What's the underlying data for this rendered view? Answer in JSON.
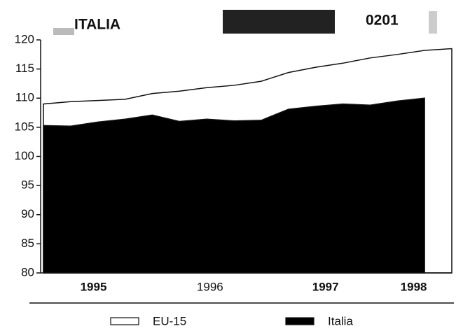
{
  "title": "ITALIA",
  "code": "0201",
  "chart_data": {
    "type": "area",
    "x": [
      1995.0,
      1995.25,
      1995.5,
      1995.75,
      1996.0,
      1996.25,
      1996.5,
      1996.75,
      1997.0,
      1997.25,
      1997.5,
      1997.75,
      1998.0,
      1998.25,
      1998.5,
      1998.75
    ],
    "series": [
      {
        "name": "EU-15",
        "color": "#ffffff",
        "values": [
          109.0,
          109.4,
          109.6,
          109.8,
          110.8,
          111.2,
          111.8,
          112.2,
          112.9,
          114.4,
          115.3,
          116.0,
          116.9,
          117.5,
          118.2,
          118.5
        ]
      },
      {
        "name": "Italia",
        "color": "#000000",
        "values": [
          105.3,
          105.2,
          105.9,
          106.4,
          107.1,
          106.0,
          106.4,
          106.1,
          106.2,
          108.1,
          108.6,
          109.0,
          108.8,
          109.5,
          110.0,
          null
        ]
      }
    ],
    "xlim": [
      1995,
      1998.75
    ],
    "xticks": [
      {
        "value": 1995.46,
        "label": "1995"
      },
      {
        "value": 1996.53,
        "label": "1996"
      },
      {
        "value": 1997.59,
        "label": "1997"
      },
      {
        "value": 1998.4,
        "label": "1998"
      }
    ],
    "ylim": [
      80,
      120
    ],
    "yticks": [
      80,
      85,
      90,
      95,
      100,
      105,
      110,
      115,
      120
    ]
  }
}
